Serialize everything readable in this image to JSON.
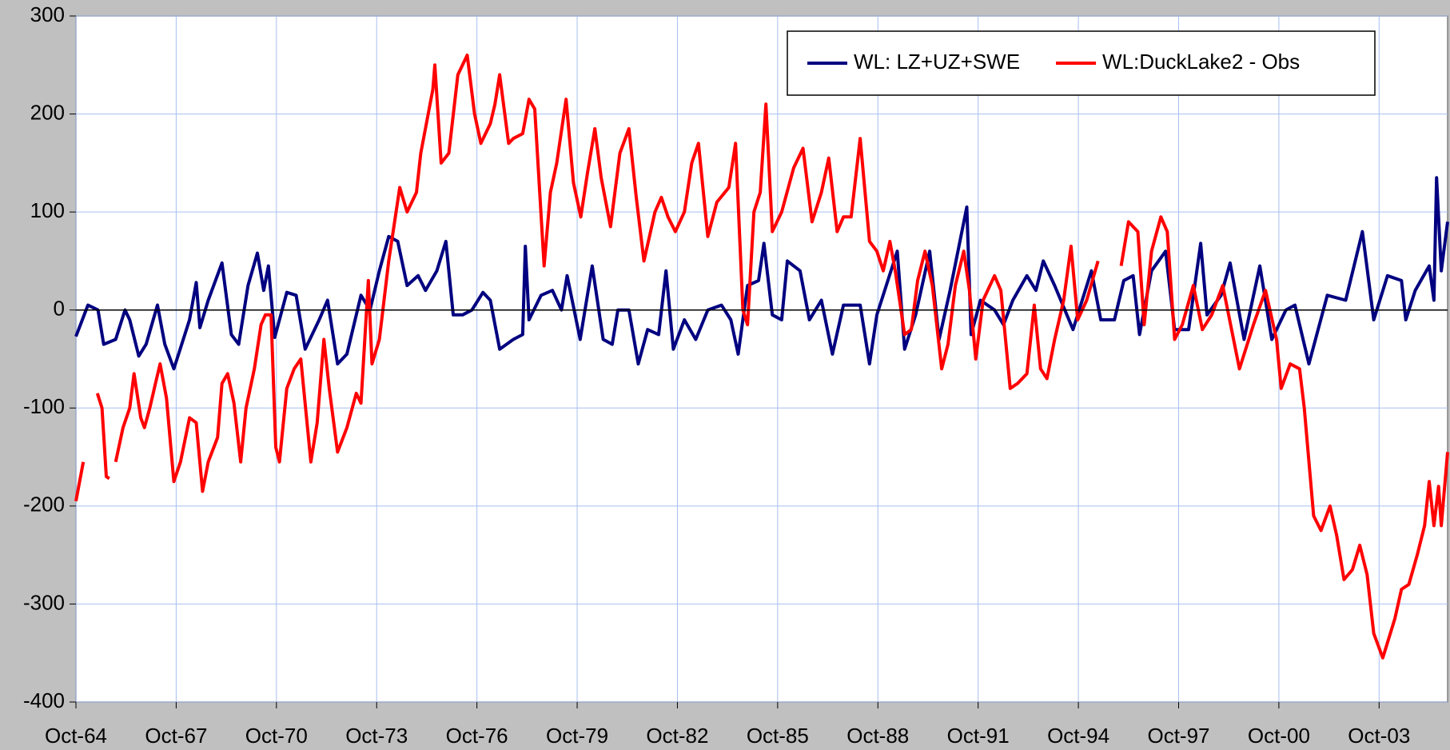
{
  "chart_data": {
    "type": "line",
    "xlim": [
      1964.75,
      2005.8
    ],
    "ylim": [
      -400,
      300
    ],
    "yticks": [
      -400,
      -300,
      -200,
      -100,
      0,
      100,
      200,
      300
    ],
    "xticks": [
      {
        "value": 1964.75,
        "label": "Oct-64"
      },
      {
        "value": 1967.75,
        "label": "Oct-67"
      },
      {
        "value": 1970.75,
        "label": "Oct-70"
      },
      {
        "value": 1973.75,
        "label": "Oct-73"
      },
      {
        "value": 1976.75,
        "label": "Oct-76"
      },
      {
        "value": 1979.75,
        "label": "Oct-79"
      },
      {
        "value": 1982.75,
        "label": "Oct-82"
      },
      {
        "value": 1985.75,
        "label": "Oct-85"
      },
      {
        "value": 1988.75,
        "label": "Oct-88"
      },
      {
        "value": 1991.75,
        "label": "Oct-91"
      },
      {
        "value": 1994.75,
        "label": "Oct-94"
      },
      {
        "value": 1997.75,
        "label": "Oct-97"
      },
      {
        "value": 2000.75,
        "label": "Oct-00"
      },
      {
        "value": 2003.75,
        "label": "Oct-03"
      }
    ],
    "grid": true,
    "legend": "upper right",
    "series": [
      {
        "name": "WL: LZ+UZ+SWE",
        "color": "#000080",
        "x": [
          1964.75,
          1965.11,
          1965.41,
          1965.58,
          1965.94,
          1966.22,
          1966.36,
          1966.63,
          1966.85,
          1967.19,
          1967.41,
          1967.68,
          1968.15,
          1968.35,
          1968.46,
          1968.71,
          1969.12,
          1969.4,
          1969.62,
          1969.9,
          1970.18,
          1970.37,
          1970.51,
          1970.7,
          1971.06,
          1971.34,
          1971.61,
          1972.03,
          1972.28,
          1972.58,
          1972.86,
          1973.28,
          1973.55,
          1973.83,
          1974.11,
          1974.38,
          1974.66,
          1974.99,
          1975.21,
          1975.55,
          1975.82,
          1976.04,
          1976.32,
          1976.6,
          1976.93,
          1977.15,
          1977.43,
          1977.84,
          1978.12,
          1978.2,
          1978.31,
          1978.67,
          1979.01,
          1979.28,
          1979.45,
          1979.84,
          1980.2,
          1980.53,
          1980.8,
          1980.97,
          1981.3,
          1981.58,
          1981.86,
          1982.19,
          1982.41,
          1982.63,
          1982.96,
          1983.3,
          1983.66,
          1984.07,
          1984.35,
          1984.57,
          1984.85,
          1985.18,
          1985.34,
          1985.59,
          1985.87,
          1986.04,
          1986.42,
          1986.7,
          1987.06,
          1987.39,
          1987.72,
          1988.22,
          1988.5,
          1988.72,
          1989.33,
          1989.55,
          1989.88,
          1990.3,
          1990.58,
          1990.91,
          1991.41,
          1991.54,
          1991.82,
          1992.24,
          1992.51,
          1992.79,
          1993.21,
          1993.48,
          1993.7,
          1994.04,
          1994.59,
          1995.14,
          1995.42,
          1995.83,
          1996.11,
          1996.39,
          1996.58,
          1996.94,
          1997.36,
          1997.63,
          1998.05,
          1998.41,
          1998.6,
          1999.02,
          1999.29,
          1999.71,
          2000.18,
          2000.54,
          2000.96,
          2001.23,
          2001.65,
          2002.2,
          2002.75,
          2003.25,
          2003.59,
          2004.0,
          2004.42,
          2004.55,
          2004.83,
          2005.25,
          2005.39,
          2005.47,
          2005.61,
          2005.8
        ],
        "values": [
          -27,
          5,
          0,
          -35,
          -30,
          0,
          -10,
          -47,
          -35,
          5,
          -35,
          -60,
          -10,
          28,
          -18,
          10,
          48,
          -25,
          -35,
          25,
          58,
          20,
          45,
          -28,
          18,
          15,
          -40,
          -10,
          10,
          -55,
          -45,
          15,
          0,
          40,
          75,
          70,
          25,
          35,
          20,
          40,
          70,
          -5,
          -5,
          0,
          18,
          10,
          -40,
          -30,
          -25,
          65,
          -10,
          15,
          20,
          0,
          35,
          -30,
          45,
          -30,
          -35,
          0,
          0,
          -55,
          -20,
          -25,
          40,
          -40,
          -10,
          -30,
          0,
          5,
          -10,
          -45,
          25,
          30,
          68,
          -5,
          -10,
          50,
          40,
          -10,
          10,
          -45,
          5,
          5,
          -55,
          -5,
          60,
          -40,
          -5,
          60,
          -30,
          20,
          105,
          -25,
          10,
          0,
          -15,
          10,
          35,
          20,
          50,
          25,
          -20,
          40,
          -10,
          -10,
          30,
          35,
          -25,
          40,
          60,
          -20,
          -20,
          68,
          -5,
          15,
          48,
          -30,
          45,
          -30,
          0,
          5,
          -55,
          15,
          10,
          80,
          -10,
          35,
          30,
          -10,
          20,
          45,
          10,
          135,
          40,
          90
        ]
      },
      {
        "name": "WL:DuckLake2 - Obs",
        "color": "#ff0000",
        "x": [
          1964.75,
          1964.97,
          1965.2,
          1965.39,
          1965.53,
          1965.66,
          1965.75,
          1965.85,
          1965.94,
          1966.16,
          1966.36,
          1966.49,
          1966.69,
          1966.8,
          1966.96,
          1967.13,
          1967.27,
          1967.46,
          1967.68,
          1967.88,
          1968.15,
          1968.35,
          1968.54,
          1968.71,
          1968.99,
          1969.12,
          1969.29,
          1969.48,
          1969.68,
          1969.84,
          1970.09,
          1970.29,
          1970.42,
          1970.59,
          1970.73,
          1970.84,
          1971.06,
          1971.28,
          1971.48,
          1971.78,
          1971.97,
          1972.17,
          1972.33,
          1972.58,
          1972.86,
          1973.14,
          1973.28,
          1973.5,
          1973.61,
          1973.83,
          1974.11,
          1974.44,
          1974.66,
          1974.94,
          1975.07,
          1975.43,
          1975.49,
          1975.68,
          1975.91,
          1976.18,
          1976.46,
          1976.68,
          1976.87,
          1977.15,
          1977.29,
          1977.43,
          1977.7,
          1977.84,
          1978.12,
          1978.31,
          1978.48,
          1978.76,
          1978.95,
          1979.14,
          1979.42,
          1979.64,
          1979.86,
          1980.06,
          1980.28,
          1980.47,
          1980.75,
          1981.03,
          1981.3,
          1981.52,
          1981.75,
          1982.08,
          1982.27,
          1982.47,
          1982.69,
          1982.96,
          1983.18,
          1983.38,
          1983.66,
          1983.93,
          1984.29,
          1984.49,
          1984.71,
          1984.85,
          1985.04,
          1985.23,
          1985.4,
          1985.59,
          1985.87,
          1986.23,
          1986.51,
          1986.78,
          1987.06,
          1987.28,
          1987.53,
          1987.72,
          1987.95,
          1988.22,
          1988.5,
          1988.72,
          1988.91,
          1989.11,
          1989.27,
          1989.55,
          1989.75,
          1989.94,
          1990.16,
          1990.38,
          1990.66,
          1990.85,
          1991.07,
          1991.32,
          1991.49,
          1991.68,
          1991.9,
          1992.24,
          1992.43,
          1992.71,
          1992.93,
          1993.21,
          1993.43,
          1993.62,
          1993.81,
          1994.04,
          1994.31,
          1994.53,
          1994.73,
          1995.0,
          1995.34,
          1995.7,
          1996.03,
          1996.25,
          1996.53,
          1996.72,
          1996.94,
          1997.22,
          1997.41,
          1997.63,
          1997.86,
          1998.19,
          1998.46,
          1998.74,
          1999.07,
          1999.57,
          1999.99,
          2000.35,
          2000.68,
          2000.82,
          2001.09,
          2001.37,
          2001.51,
          2001.79,
          2002.01,
          2002.28,
          2002.48,
          2002.7,
          2002.95,
          2003.17,
          2003.39,
          2003.59,
          2003.86,
          2004.22,
          2004.42,
          2004.64,
          2004.89,
          2005.11,
          2005.25,
          2005.39,
          2005.53,
          2005.61,
          2005.8
        ],
        "values": [
          -195,
          -155,
          null,
          -85,
          -100,
          -170,
          -172,
          null,
          -155,
          -120,
          -100,
          -65,
          -110,
          -120,
          -100,
          -75,
          -55,
          -90,
          -175,
          -155,
          -110,
          -115,
          -185,
          -155,
          -130,
          -75,
          -65,
          -95,
          -155,
          -100,
          -60,
          -15,
          -5,
          -5,
          -140,
          -155,
          -80,
          -60,
          -50,
          -155,
          -115,
          -30,
          -80,
          -145,
          -120,
          -85,
          -95,
          30,
          -55,
          -30,
          50,
          125,
          100,
          120,
          160,
          225,
          250,
          150,
          160,
          240,
          260,
          200,
          170,
          190,
          210,
          240,
          170,
          175,
          180,
          215,
          205,
          45,
          120,
          150,
          215,
          130,
          95,
          140,
          185,
          135,
          85,
          160,
          185,
          115,
          50,
          100,
          115,
          95,
          80,
          100,
          150,
          170,
          75,
          110,
          125,
          170,
          0,
          -15,
          100,
          120,
          210,
          80,
          100,
          145,
          165,
          90,
          120,
          155,
          80,
          95,
          95,
          175,
          70,
          60,
          40,
          70,
          40,
          -25,
          -20,
          30,
          60,
          25,
          -60,
          -35,
          25,
          60,
          20,
          -50,
          10,
          35,
          20,
          -80,
          -75,
          -65,
          5,
          -60,
          -70,
          -30,
          10,
          65,
          -10,
          10,
          50,
          null,
          45,
          90,
          80,
          -15,
          60,
          95,
          80,
          -30,
          -15,
          25,
          -20,
          -5,
          25,
          -60,
          -15,
          20,
          -30,
          -80,
          -55,
          -60,
          -100,
          -210,
          -225,
          -200,
          -230,
          -275,
          -265,
          -240,
          -270,
          -330,
          -355,
          -315,
          -285,
          -280,
          -250,
          -220,
          -175,
          -220,
          -180,
          -220,
          -145
        ]
      }
    ]
  }
}
